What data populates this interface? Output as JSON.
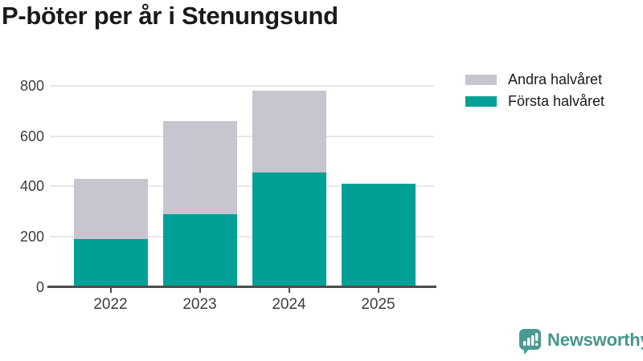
{
  "title": "P-böter per år i Stenungsund",
  "legend": [
    {
      "label": "Andra halvåret",
      "color": "#c8c5d0"
    },
    {
      "label": "Första halvåret",
      "color": "#00a096"
    }
  ],
  "chart_data": {
    "type": "bar",
    "stacked": true,
    "title": "P-böter per år i Stenungsund",
    "categories": [
      "2022",
      "2023",
      "2024",
      "2025"
    ],
    "series": [
      {
        "name": "Första halvåret",
        "color": "#00a096",
        "values": [
          190,
          290,
          455,
          410
        ]
      },
      {
        "name": "Andra halvåret",
        "color": "#c8c5d0",
        "values": [
          240,
          370,
          325,
          0
        ]
      }
    ],
    "totals": [
      430,
      660,
      780,
      410
    ],
    "xlabel": "",
    "ylabel": "",
    "ylim": [
      0,
      800
    ],
    "yticks": [
      0,
      200,
      400,
      600,
      800
    ],
    "grid": true,
    "legend_position": "top-right"
  },
  "branding": {
    "logo_text": "Newsworthy",
    "logo_icon": "bar-chart-speech-bubble-icon",
    "logo_color": "#47968f"
  },
  "colors": {
    "first_half": "#00a096",
    "second_half": "#c8c5d0",
    "axis_line": "#4d4d4d",
    "gridline": "#e8e8e8",
    "tick_text": "#3d3d3d",
    "title_text": "#1a1a1a",
    "background": "#ffffff"
  }
}
